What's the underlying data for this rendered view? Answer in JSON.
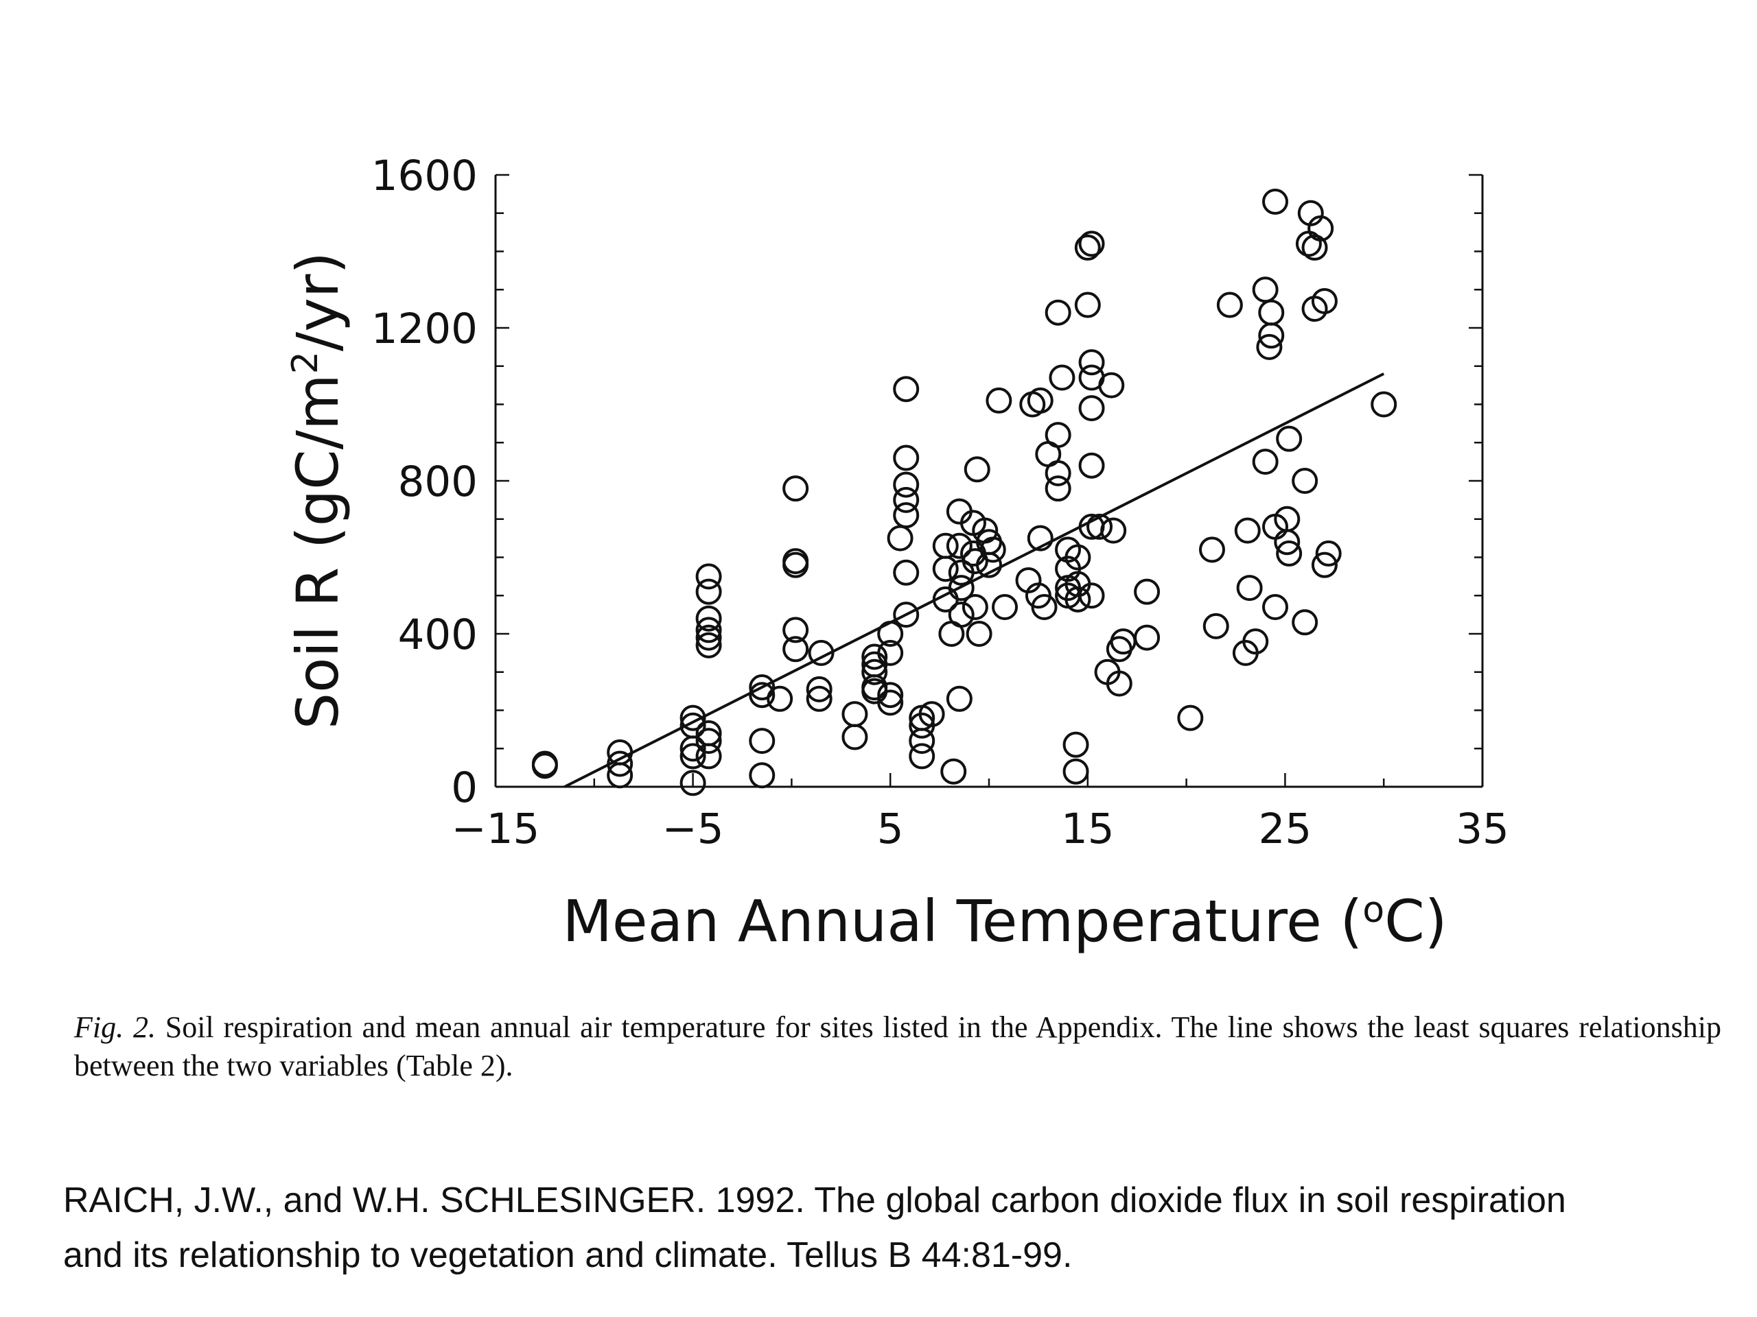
{
  "chart_data": {
    "type": "scatter",
    "xlabel_main": "Mean Annual Temperature (",
    "xlabel_sup": "o",
    "xlabel_end": "C)",
    "ylabel_main": "Soil R (gC/m",
    "ylabel_sup": "2",
    "ylabel_end": "/yr)",
    "xlim": [
      -15,
      35
    ],
    "ylim": [
      0,
      1600
    ],
    "xticks": [
      -15,
      -5,
      5,
      15,
      25,
      35
    ],
    "xtick_labels": [
      "−15",
      "−5",
      "5",
      "15",
      "25",
      "35"
    ],
    "yticks": [
      0,
      400,
      800,
      1200,
      1600
    ],
    "ytick_labels": [
      "0",
      "400",
      "800",
      "1200",
      "1600"
    ],
    "marker": "open-circle",
    "grid": false,
    "points": [
      [
        -12.5,
        60
      ],
      [
        -12.5,
        55
      ],
      [
        -8.7,
        90
      ],
      [
        -8.7,
        60
      ],
      [
        -8.7,
        30
      ],
      [
        -5,
        180
      ],
      [
        -5,
        160
      ],
      [
        -5,
        100
      ],
      [
        -5,
        80
      ],
      [
        -5,
        10
      ],
      [
        -4.2,
        550
      ],
      [
        -4.2,
        510
      ],
      [
        -4.2,
        440
      ],
      [
        -4.2,
        410
      ],
      [
        -4.2,
        390
      ],
      [
        -4.2,
        370
      ],
      [
        -4.2,
        140
      ],
      [
        -4.2,
        120
      ],
      [
        -4.2,
        80
      ],
      [
        -1.5,
        260
      ],
      [
        -1.5,
        240
      ],
      [
        -1.5,
        120
      ],
      [
        -1.5,
        30
      ],
      [
        -0.6,
        230
      ],
      [
        0.2,
        780
      ],
      [
        0.2,
        590
      ],
      [
        0.2,
        580
      ],
      [
        0.2,
        410
      ],
      [
        0.2,
        360
      ],
      [
        1.5,
        350
      ],
      [
        1.4,
        255
      ],
      [
        1.4,
        230
      ],
      [
        3.2,
        190
      ],
      [
        3.2,
        130
      ],
      [
        4.2,
        340
      ],
      [
        4.2,
        320
      ],
      [
        4.2,
        300
      ],
      [
        4.2,
        260
      ],
      [
        4.2,
        250
      ],
      [
        5,
        400
      ],
      [
        5,
        350
      ],
      [
        5,
        240
      ],
      [
        5,
        220
      ],
      [
        5.8,
        1040
      ],
      [
        5.8,
        860
      ],
      [
        5.8,
        790
      ],
      [
        5.8,
        750
      ],
      [
        5.8,
        710
      ],
      [
        5.8,
        560
      ],
      [
        5.8,
        450
      ],
      [
        5.5,
        650
      ],
      [
        6.6,
        180
      ],
      [
        6.6,
        160
      ],
      [
        6.6,
        120
      ],
      [
        6.6,
        80
      ],
      [
        7.1,
        190
      ],
      [
        7.8,
        630
      ],
      [
        7.8,
        570
      ],
      [
        7.8,
        490
      ],
      [
        8.1,
        400
      ],
      [
        8.5,
        720
      ],
      [
        8.5,
        630
      ],
      [
        8.6,
        560
      ],
      [
        8.6,
        520
      ],
      [
        8.6,
        450
      ],
      [
        8.5,
        230
      ],
      [
        9.2,
        690
      ],
      [
        9.2,
        610
      ],
      [
        9.3,
        590
      ],
      [
        9.3,
        470
      ],
      [
        9.5,
        400
      ],
      [
        9.4,
        830
      ],
      [
        9.8,
        670
      ],
      [
        10,
        640
      ],
      [
        10,
        580
      ],
      [
        10.2,
        620
      ],
      [
        10.5,
        1010
      ],
      [
        10.8,
        470
      ],
      [
        8.2,
        40
      ],
      [
        12.2,
        1000
      ],
      [
        12.6,
        1010
      ],
      [
        12.6,
        650
      ],
      [
        12,
        540
      ],
      [
        12.5,
        500
      ],
      [
        12.8,
        470
      ],
      [
        13,
        870
      ],
      [
        13.5,
        920
      ],
      [
        13.5,
        820
      ],
      [
        13.5,
        780
      ],
      [
        13.7,
        1070
      ],
      [
        13.5,
        1240
      ],
      [
        14,
        620
      ],
      [
        14,
        570
      ],
      [
        14,
        520
      ],
      [
        14,
        500
      ],
      [
        14.5,
        530
      ],
      [
        14.5,
        490
      ],
      [
        14.5,
        600
      ],
      [
        14.4,
        110
      ],
      [
        14.4,
        40
      ],
      [
        15,
        1410
      ],
      [
        15.2,
        1420
      ],
      [
        15,
        1260
      ],
      [
        15.2,
        1110
      ],
      [
        15.2,
        1070
      ],
      [
        15.2,
        990
      ],
      [
        15.2,
        840
      ],
      [
        15.2,
        680
      ],
      [
        15.6,
        680
      ],
      [
        15.2,
        500
      ],
      [
        16.2,
        1050
      ],
      [
        16.3,
        670
      ],
      [
        16,
        300
      ],
      [
        16.6,
        270
      ],
      [
        16.6,
        360
      ],
      [
        16.8,
        380
      ],
      [
        18,
        510
      ],
      [
        18,
        390
      ],
      [
        20.2,
        180
      ],
      [
        21.3,
        620
      ],
      [
        21.5,
        420
      ],
      [
        22.2,
        1260
      ],
      [
        23.1,
        670
      ],
      [
        23.2,
        520
      ],
      [
        23,
        350
      ],
      [
        23.5,
        380
      ],
      [
        24,
        1300
      ],
      [
        24.3,
        1240
      ],
      [
        24.3,
        1180
      ],
      [
        24.2,
        1150
      ],
      [
        24.5,
        1530
      ],
      [
        24,
        850
      ],
      [
        24.5,
        680
      ],
      [
        24.5,
        470
      ],
      [
        25.2,
        910
      ],
      [
        25.1,
        700
      ],
      [
        25.1,
        640
      ],
      [
        25.2,
        610
      ],
      [
        26,
        800
      ],
      [
        26,
        430
      ],
      [
        26.2,
        1420
      ],
      [
        26.5,
        1410
      ],
      [
        26.3,
        1500
      ],
      [
        26.8,
        1460
      ],
      [
        26.5,
        1250
      ],
      [
        27,
        1270
      ],
      [
        27,
        580
      ],
      [
        27.2,
        610
      ],
      [
        30,
        1000
      ]
    ],
    "fit_line": {
      "x": [
        -11.5,
        30
      ],
      "y": [
        0,
        1080
      ]
    }
  },
  "caption": {
    "fig_label": "Fig. 2.",
    "text": " Soil respiration and mean annual air temperature for sites listed in the Appendix. The line shows the least squares relationship between the two variables (Table 2)."
  },
  "citation": {
    "line1": "RAICH, J.W., and W.H. SCHLESINGER. 1992. The global carbon dioxide flux in soil respiration",
    "line2": "and its relationship to vegetation and climate. Tellus B 44:81-99."
  }
}
